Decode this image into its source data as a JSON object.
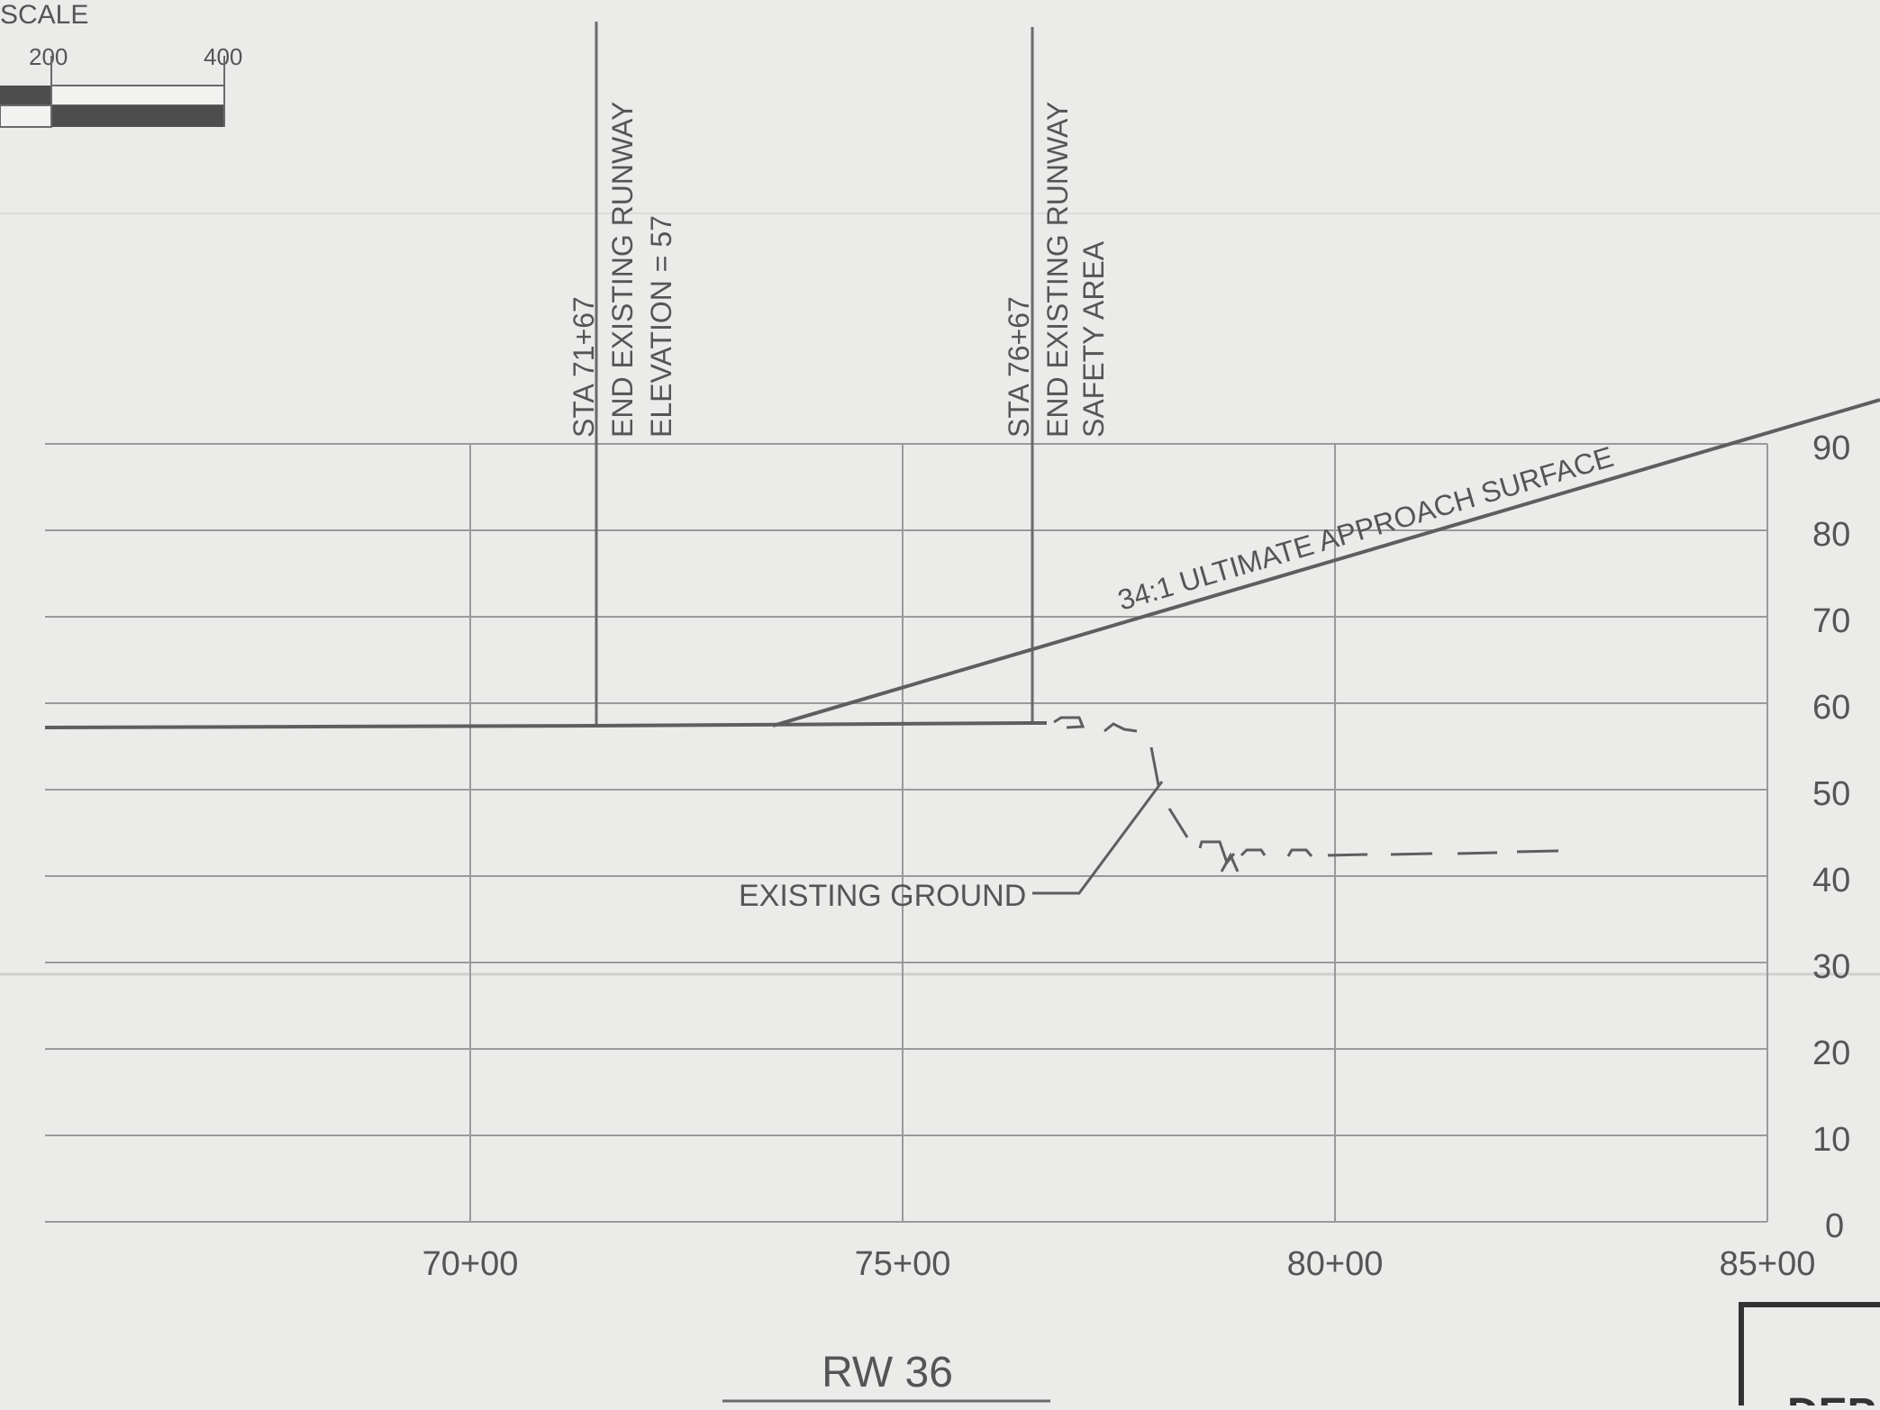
{
  "scale_bar": {
    "label": "SCALE",
    "ticks": [
      "200",
      "400"
    ]
  },
  "profile": {
    "station_labels": [
      "70+00",
      "75+00",
      "80+00",
      "85+00"
    ],
    "elevation_labels": [
      "90",
      "80",
      "70",
      "60",
      "50",
      "40",
      "30",
      "20",
      "10",
      "0"
    ],
    "callouts": {
      "sta_71": [
        "STA 71+67",
        "END EXISTING RUNWAY",
        "ELEVATION = 57"
      ],
      "sta_76": [
        "STA 76+67",
        "END EXISTING RUNWAY",
        "SAFETY AREA"
      ]
    },
    "approach_label": "34:1 ULTIMATE APPROACH SURFACE",
    "ground_label": "EXISTING GROUND",
    "title": "RW 36",
    "corner_label": "DEP"
  },
  "colors": {
    "background": "#ebebea",
    "line": "#6a6a6a",
    "grid": "#9a9a9a",
    "text": "#555555"
  }
}
